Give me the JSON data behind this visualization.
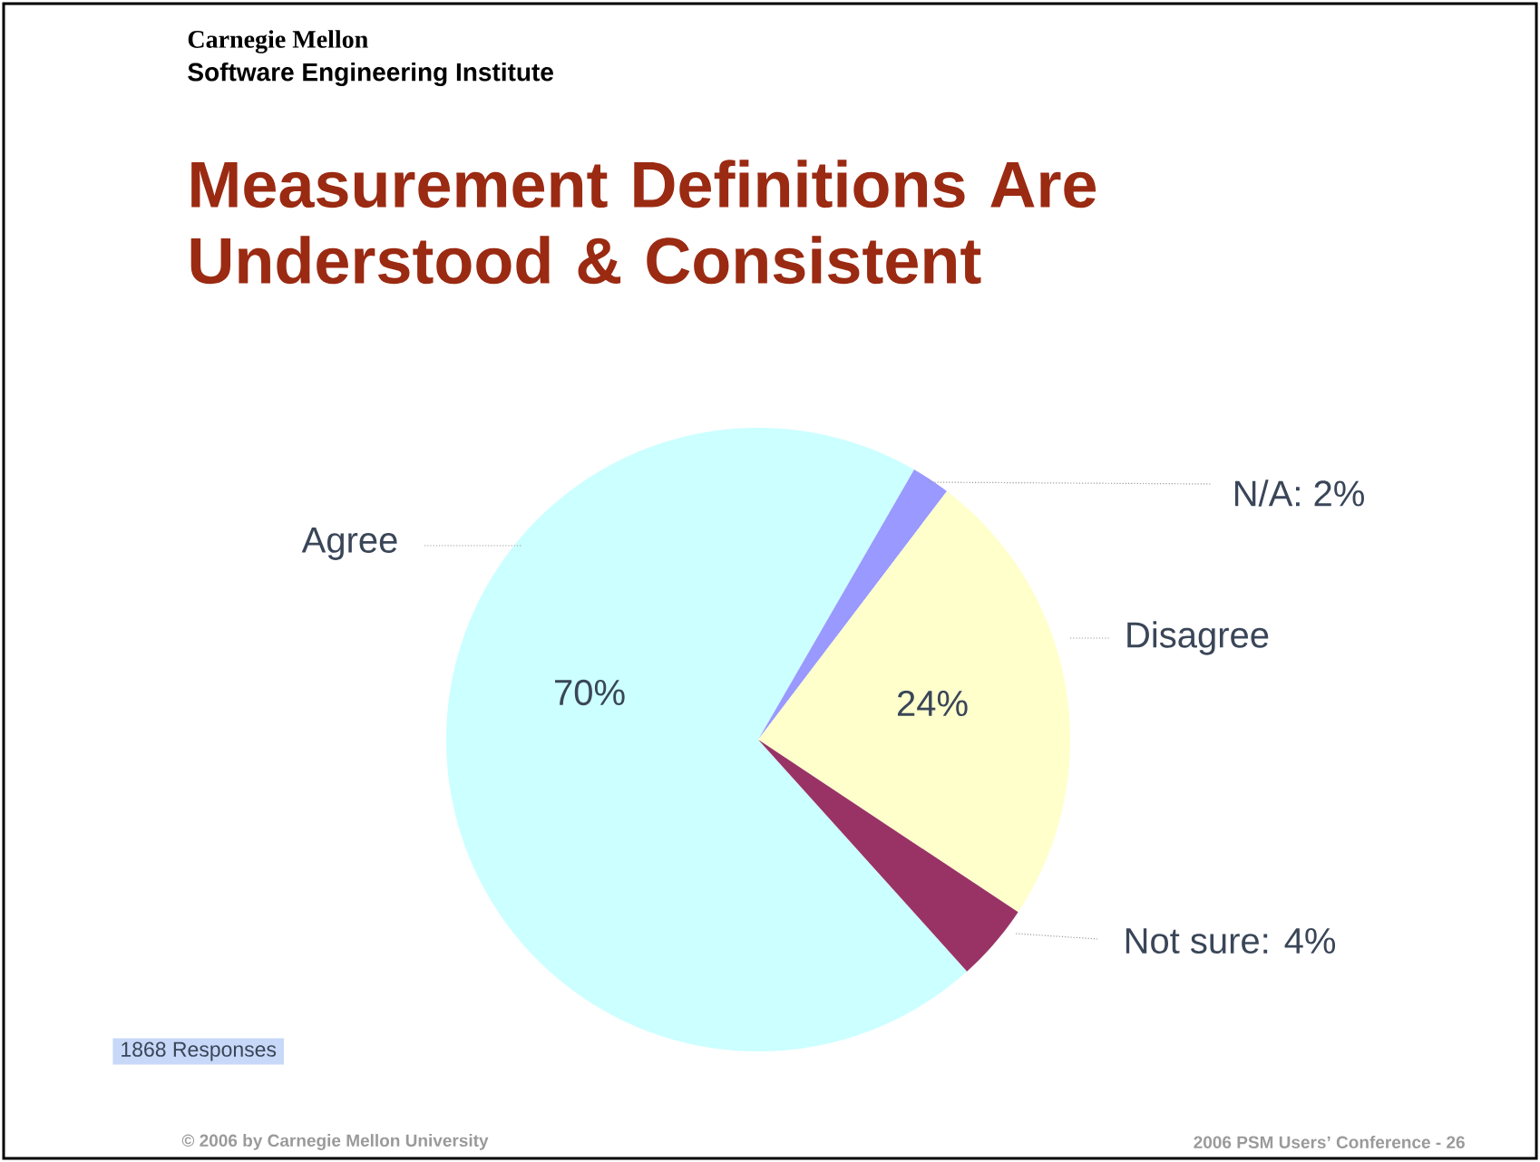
{
  "chart_data": {
    "type": "pie",
    "title": "Measurement Definitions Are Understood & Consistent",
    "categories": [
      "Agree",
      "N/A: 2%",
      "Disagree",
      "Not sure: 4%"
    ],
    "values": [
      70,
      2,
      24,
      4
    ],
    "colors": [
      "#ccffff",
      "#9999ff",
      "#ffffcc",
      "#993366"
    ],
    "value_labels": [
      "70%",
      null,
      "24%",
      null
    ],
    "annotations": [
      "Carnegie Mellon",
      "Software Engineering Institute",
      "1868 Responses",
      "© 2006 by Carnegie Mellon University",
      "2006 PSM Users’ Conference - 26"
    ]
  }
}
